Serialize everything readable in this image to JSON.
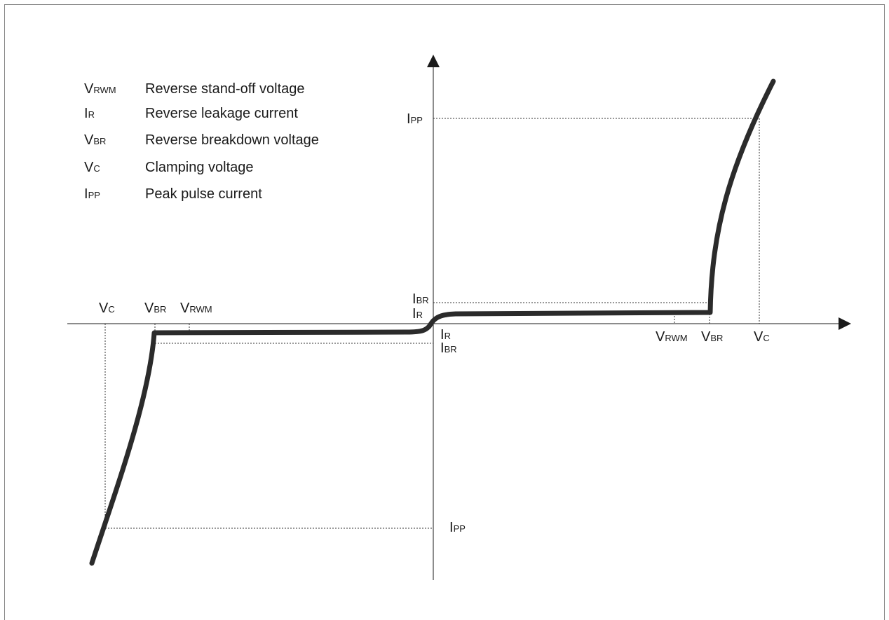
{
  "legend": [
    {
      "sym_main": "V",
      "sym_sub": "RWM",
      "description": "Reverse stand-off voltage"
    },
    {
      "sym_main": "I",
      "sym_sub": "R",
      "description": "Reverse leakage current"
    },
    {
      "sym_main": "V",
      "sym_sub": "BR",
      "description": "Reverse breakdown voltage"
    },
    {
      "sym_main": "V",
      "sym_sub": "C",
      "description": "Clamping voltage"
    },
    {
      "sym_main": "I",
      "sym_sub": "PP",
      "description": "Peak pulse current"
    }
  ],
  "labels": {
    "pos_ipp": {
      "main": "I",
      "sub": "PP"
    },
    "pos_ibr": {
      "main": "I",
      "sub": "BR"
    },
    "pos_ir": {
      "main": "I",
      "sub": "R"
    },
    "neg_ir": {
      "main": "I",
      "sub": "R"
    },
    "neg_ibr": {
      "main": "I",
      "sub": "BR"
    },
    "neg_ipp": {
      "main": "I",
      "sub": "PP"
    },
    "neg_vc": {
      "main": "V",
      "sub": "C"
    },
    "neg_vbr": {
      "main": "V",
      "sub": "BR"
    },
    "neg_vrwm": {
      "main": "V",
      "sub": "RWM"
    },
    "pos_vrwm": {
      "main": "V",
      "sub": "RWM"
    },
    "pos_vbr": {
      "main": "V",
      "sub": "BR"
    },
    "pos_vc": {
      "main": "V",
      "sub": "C"
    }
  },
  "colors": {
    "curve": "#2b2b2b",
    "axis": "#1a1a1a",
    "guide": "#333333",
    "frame": "#888888"
  }
}
